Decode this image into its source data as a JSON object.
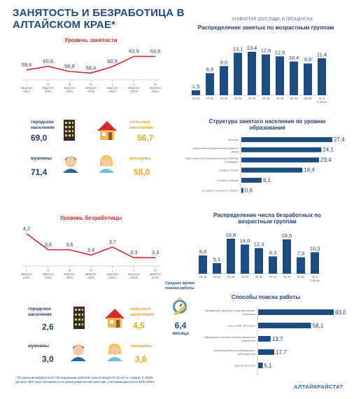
{
  "header": {
    "title": "ЗАНЯТОСТЬ И БЕЗРАБОТИЦА В АЛТАЙСКОМ КРАЕ*",
    "period": "III  КВАРТАЛ 2023 ГОДА, В ПРОЦЕНТАХ"
  },
  "colors": {
    "navy": "#1c4c82",
    "red": "#d9272e",
    "gold": "#e8a820",
    "bar": "#1c4c82"
  },
  "employment": {
    "urban_label": "городское население",
    "urban_value": "69,0",
    "rural_label": "сельское население",
    "rural_value": "56,7",
    "men_label": "мужчины",
    "men_value": "71,4",
    "women_label": "женщины",
    "women_value": "58,0",
    "urban_icon": "city-buildings-icon",
    "rural_icon": "rural-house-icon",
    "men_icon": "man-icon",
    "women_icon": "woman-icon"
  },
  "unemployment_stats": {
    "urban_label": "городское население",
    "urban_value": "2,6",
    "rural_label": "сельское население",
    "rural_value": "4,5",
    "men_label": "мужчины",
    "men_value": "3,0",
    "women_label": "женщины",
    "women_value": "3,6",
    "search_time_label": "Среднее время поиска работы",
    "search_time_value": "6,4",
    "search_time_unit": "месяца",
    "search_icon": "stopwatch-icon"
  },
  "footnote": "* По данным выборочного обследования рабочей силы в возрасте 15 лет и старше. С 2023г. данные ОРС рассчитываются на демографическом массиве, учитывающем итоги ВПН-2020.",
  "brand": "АЛТАЙКРАЙСТАТ",
  "chart_data": [
    {
      "id": "employment_rate",
      "type": "line",
      "title": "Уровень занятости",
      "categories": [
        "I квартал 2022",
        "II квартал 2022",
        "III квартал 2022",
        "IV квартал 2022",
        "I квартал 2023",
        "II квартал 2023",
        "III квартал 2023"
      ],
      "values": [
        59.4,
        60.6,
        58.9,
        58.4,
        60.5,
        63.9,
        63.9
      ],
      "labels": [
        "59,4",
        "60,6",
        "58,9",
        "58,4",
        "60,5",
        "63,9",
        "63,9"
      ],
      "color": "#d9272e"
    },
    {
      "id": "employed_by_age",
      "type": "bar",
      "title": "Распределение занятых по возрастным группам",
      "categories": [
        "15-19",
        "20-24",
        "25-29",
        "30-34",
        "35-39",
        "40-44",
        "45-49",
        "50-54",
        "55-59",
        "60 и старше"
      ],
      "values": [
        1.5,
        6.8,
        9.0,
        13.1,
        13.4,
        12.6,
        12.0,
        10.4,
        9.8,
        11.4
      ],
      "labels": [
        "1,5",
        "6,8",
        "9,0",
        "13,1",
        "13,4",
        "12,6",
        "12,0",
        "10,4",
        "9,8",
        "11,4"
      ]
    },
    {
      "id": "employed_by_education",
      "type": "bar",
      "orientation": "horizontal",
      "title": "Структура занятого населения по уровню образования",
      "categories": [
        "высшее",
        "подготовка специалистов среднего звена",
        "подготовка квалифицированных рабочих (служащих)",
        "среднее общее",
        "основное общее",
        "не имеют основного общего"
      ],
      "values": [
        27.4,
        24.1,
        23.4,
        18.4,
        6.1,
        0.6
      ],
      "labels": [
        "27,4",
        "24,1",
        "23,4",
        "18,4",
        "6,1",
        "0,6"
      ]
    },
    {
      "id": "unemployment_rate",
      "type": "line",
      "title": "Уровень безработицы",
      "categories": [
        "I квартал 2022",
        "II квартал 2022",
        "III квартал 2022",
        "IV квартал 2022",
        "I квартал 2023",
        "II квартал 2023",
        "III квартал 2023"
      ],
      "values": [
        4.2,
        3.6,
        3.6,
        3.4,
        3.7,
        3.3,
        3.3
      ],
      "labels": [
        "4,2",
        "3,6",
        "3,6",
        "3,4",
        "3,7",
        "3,3",
        "3,3"
      ],
      "color": "#d9272e"
    },
    {
      "id": "unemployed_by_age",
      "type": "bar",
      "title": "Распределение числа безработных по возрастным группам",
      "categories": [
        "15-19",
        "20-24",
        "25-29",
        "30-34",
        "35-39",
        "40-44",
        "45-49",
        "50-54",
        "55 и старше"
      ],
      "values": [
        8.8,
        5.1,
        16.8,
        14.0,
        12.3,
        8.3,
        16.5,
        7.9,
        10.3
      ],
      "labels": [
        "8,8",
        "5,1",
        "16,8",
        "14,0",
        "12,3",
        "8,3",
        "16,5",
        "7,9",
        "10,3"
      ]
    },
    {
      "id": "job_search_methods",
      "type": "bar",
      "orientation": "horizontal",
      "title": "Способы поиска работы",
      "categories": [
        "обращение к друзьям, родственникам, знакомым",
        "через СМИ, Интернет",
        "обращение в органы службы занятости населения",
        "непосредственное обращение к работодателю",
        "другие способы"
      ],
      "values": [
        83.0,
        58.1,
        13.7,
        17.7,
        5.1
      ],
      "labels": [
        "83,0",
        "58,1",
        "13,7",
        "17,7",
        "5,1"
      ]
    }
  ]
}
